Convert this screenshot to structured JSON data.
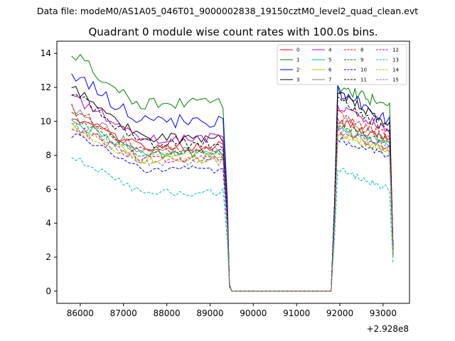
{
  "chart_data": {
    "type": "line",
    "suptitle": "Data file: modeM0/AS1A05_046T01_9000002838_19150cztM0_level2_quad_clean.evt",
    "title": "Quadrant 0 module wise count rates with 100.0s bins.",
    "xlabel": "",
    "ylabel": "",
    "x_offset_label": "+2.928e8",
    "x_offset": 292800000,
    "xlim": [
      85460,
      93610
    ],
    "ylim": [
      -0.72,
      14.72
    ],
    "x_ticks": [
      86000,
      87000,
      88000,
      89000,
      90000,
      91000,
      92000,
      93000
    ],
    "x_tick_labels": [
      "86000",
      "87000",
      "88000",
      "89000",
      "90000",
      "91000",
      "92000",
      "93000"
    ],
    "y_ticks": [
      0,
      2,
      4,
      6,
      8,
      10,
      12,
      14
    ],
    "y_tick_labels": [
      "0",
      "2",
      "4",
      "6",
      "8",
      "10",
      "12",
      "14"
    ],
    "legend_location": "upper right",
    "legend_columns": 4,
    "gap_segment": {
      "x_from": 89450,
      "x_to": 91800,
      "value": 0
    },
    "series": [
      {
        "name": "0",
        "color": "#ff0000",
        "style": "solid",
        "start": 10.3,
        "plateau1": 8.5,
        "spike": 0.35,
        "second": 10.0,
        "plateau2": 8.9,
        "end": 2.7,
        "noise": 0.4
      },
      {
        "name": "1",
        "color": "#008000",
        "style": "solid",
        "start": 14.0,
        "plateau1": 11.0,
        "spike": 0.4,
        "second": 12.0,
        "plateau2": 10.9,
        "end": 2.0,
        "noise": 0.5
      },
      {
        "name": "2",
        "color": "#0000ff",
        "style": "solid",
        "start": 12.9,
        "plateau1": 10.0,
        "spike": 0.35,
        "second": 11.8,
        "plateau2": 10.0,
        "end": 2.6,
        "noise": 0.5
      },
      {
        "name": "3",
        "color": "#000000",
        "style": "solid",
        "start": 12.0,
        "plateau1": 9.0,
        "spike": 0.3,
        "second": 11.8,
        "plateau2": 9.7,
        "end": 2.5,
        "noise": 0.4
      },
      {
        "name": "4",
        "color": "#bf00bf",
        "style": "solid",
        "start": 11.5,
        "plateau1": 9.0,
        "spike": 0.3,
        "second": 10.9,
        "plateau2": 9.5,
        "end": 2.2,
        "noise": 0.4
      },
      {
        "name": "5",
        "color": "#00bf8f",
        "style": "solid",
        "start": 10.0,
        "plateau1": 8.2,
        "spike": 0.3,
        "second": 9.5,
        "plateau2": 8.6,
        "end": 2.1,
        "noise": 0.35
      },
      {
        "name": "6",
        "color": "#bfbf00",
        "style": "solid",
        "start": 9.8,
        "plateau1": 7.8,
        "spike": 0.3,
        "second": 9.3,
        "plateau2": 8.3,
        "end": 2.0,
        "noise": 0.35
      },
      {
        "name": "7",
        "color": "#808080",
        "style": "solid",
        "start": 10.8,
        "plateau1": 8.2,
        "spike": 0.3,
        "second": 10.2,
        "plateau2": 8.8,
        "end": 2.3,
        "noise": 0.4
      },
      {
        "name": "8",
        "color": "#ff0000",
        "style": "dashed",
        "start": 10.8,
        "plateau1": 8.3,
        "spike": 0.3,
        "second": 10.5,
        "plateau2": 9.1,
        "end": 2.4,
        "noise": 0.4
      },
      {
        "name": "9",
        "color": "#008000",
        "style": "dashed",
        "start": 10.3,
        "plateau1": 8.1,
        "spike": 0.3,
        "second": 9.8,
        "plateau2": 8.7,
        "end": 2.2,
        "noise": 0.35
      },
      {
        "name": "10",
        "color": "#0000ff",
        "style": "dashed",
        "start": 9.3,
        "plateau1": 7.2,
        "spike": 0.25,
        "second": 9.0,
        "plateau2": 7.9,
        "end": 2.0,
        "noise": 0.35
      },
      {
        "name": "11",
        "color": "#000000",
        "style": "dashed",
        "start": 11.8,
        "plateau1": 8.7,
        "spike": 0.3,
        "second": 11.3,
        "plateau2": 9.3,
        "end": 2.4,
        "noise": 0.4
      },
      {
        "name": "12",
        "color": "#bf00bf",
        "style": "dashed",
        "start": 9.7,
        "plateau1": 7.8,
        "spike": 0.3,
        "second": 9.4,
        "plateau2": 8.4,
        "end": 2.1,
        "noise": 0.35
      },
      {
        "name": "13",
        "color": "#00bfbf",
        "style": "dashed",
        "start": 8.0,
        "plateau1": 5.8,
        "spike": 0.25,
        "second": 7.2,
        "plateau2": 6.0,
        "end": 1.6,
        "noise": 0.3
      },
      {
        "name": "14",
        "color": "#bfbf00",
        "style": "dashed",
        "start": 9.6,
        "plateau1": 7.8,
        "spike": 0.3,
        "second": 9.1,
        "plateau2": 8.2,
        "end": 2.0,
        "noise": 0.35
      },
      {
        "name": "15",
        "color": "#808080",
        "style": "dashed",
        "start": 9.9,
        "plateau1": 7.6,
        "spike": 0.3,
        "second": 9.6,
        "plateau2": 8.3,
        "end": 2.1,
        "noise": 0.35
      }
    ]
  }
}
